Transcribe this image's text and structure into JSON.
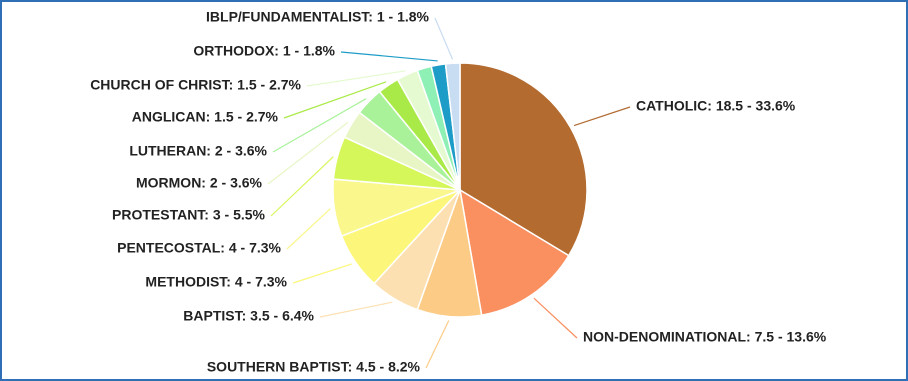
{
  "chart_data": {
    "type": "pie",
    "categories": [
      "CATHOLIC",
      "NON-DENOMINATIONAL",
      "SOUTHERN BAPTIST",
      "BAPTIST",
      "METHODIST",
      "PENTECOSTAL",
      "PROTESTANT",
      "MORMON",
      "LUTHERAN",
      "ANGLICAN",
      "CHURCH OF CHRIST",
      null,
      "ORTHODOX",
      "IBLP/FUNDAMENTALIST"
    ],
    "values": [
      18.5,
      7.5,
      4.5,
      3.5,
      4,
      4,
      3,
      2,
      2,
      1.5,
      1.5,
      1,
      1,
      1
    ],
    "value_labels": [
      "CATHOLIC: 18.5 - 33.6%",
      "NON-DENOMINATIONAL: 7.5 - 13.6%",
      "SOUTHERN BAPTIST: 4.5 - 8.2%",
      "BAPTIST: 3.5 - 6.4%",
      "METHODIST: 4 - 7.3%",
      "PENTECOSTAL: 4 - 7.3%",
      "PROTESTANT: 3 - 5.5%",
      "MORMON: 2 - 3.6%",
      "LUTHERAN: 2 - 3.6%",
      "ANGLICAN: 1.5 - 2.7%",
      "CHURCH OF CHRIST: 1.5 - 2.7%",
      null,
      "ORTHODOX: 1 - 1.8%",
      "IBLP/FUNDAMENTALIST: 1 - 1.8%"
    ],
    "colors": [
      "#b36b30",
      "#fa8f60",
      "#fccb86",
      "#fde0b2",
      "#fcf77a",
      "#faf78c",
      "#d6f75a",
      "#e8f6c6",
      "#a9f29a",
      "#aaea48",
      "#e6fad2",
      "#8ef0b4",
      "#1c9cc6",
      "#c8dcf2"
    ]
  }
}
